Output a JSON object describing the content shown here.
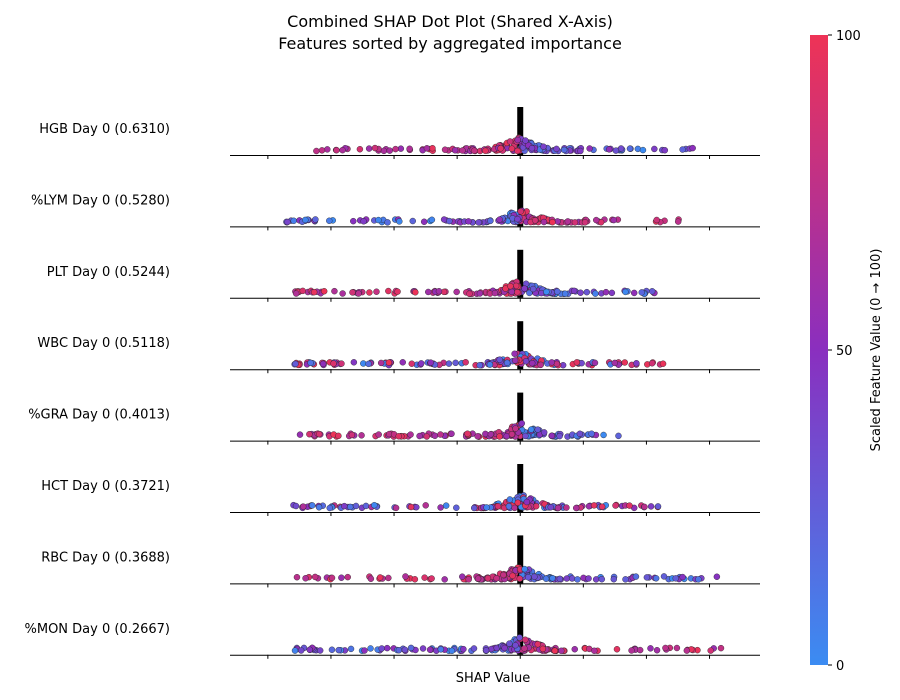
{
  "chart_data": {
    "type": "scatter",
    "title": "Combined SHAP Dot Plot (Shared X-Axis)",
    "subtitle": "Features sorted by aggregated importance",
    "xlabel": "SHAP Value",
    "xlim": [
      -0.23,
      0.19
    ],
    "x_ticks": [
      -0.2,
      -0.15,
      -0.1,
      -0.05,
      0.0,
      0.05,
      0.1,
      0.15
    ],
    "features": [
      {
        "label": "HGB Day 0 (0.6310)",
        "name": "HGB Day 0",
        "importance": 0.631
      },
      {
        "label": "%LYM Day 0 (0.5280)",
        "name": "%LYM Day 0",
        "importance": 0.528
      },
      {
        "label": "PLT Day 0 (0.5244)",
        "name": "PLT Day 0",
        "importance": 0.5244
      },
      {
        "label": "WBC Day 0 (0.5118)",
        "name": "WBC Day 0",
        "importance": 0.5118
      },
      {
        "label": "%GRA Day 0 (0.4013)",
        "name": "%GRA Day 0",
        "importance": 0.4013
      },
      {
        "label": "HCT Day 0 (0.3721)",
        "name": "HCT Day 0",
        "importance": 0.3721
      },
      {
        "label": "RBC Day 0 (0.3688)",
        "name": "RBC Day 0",
        "importance": 0.3688
      },
      {
        "label": "%MON Day 0 (0.2667)",
        "name": "%MON Day 0",
        "importance": 0.2667
      }
    ],
    "colorbar": {
      "label": "Scaled Feature Value (0 → 100)",
      "min": 0,
      "max": 100,
      "ticks": [
        "0",
        "50",
        "100"
      ],
      "low_color": "#3b8cf2",
      "mid_color": "#8a2fbf",
      "high_color": "#ee3356"
    }
  }
}
